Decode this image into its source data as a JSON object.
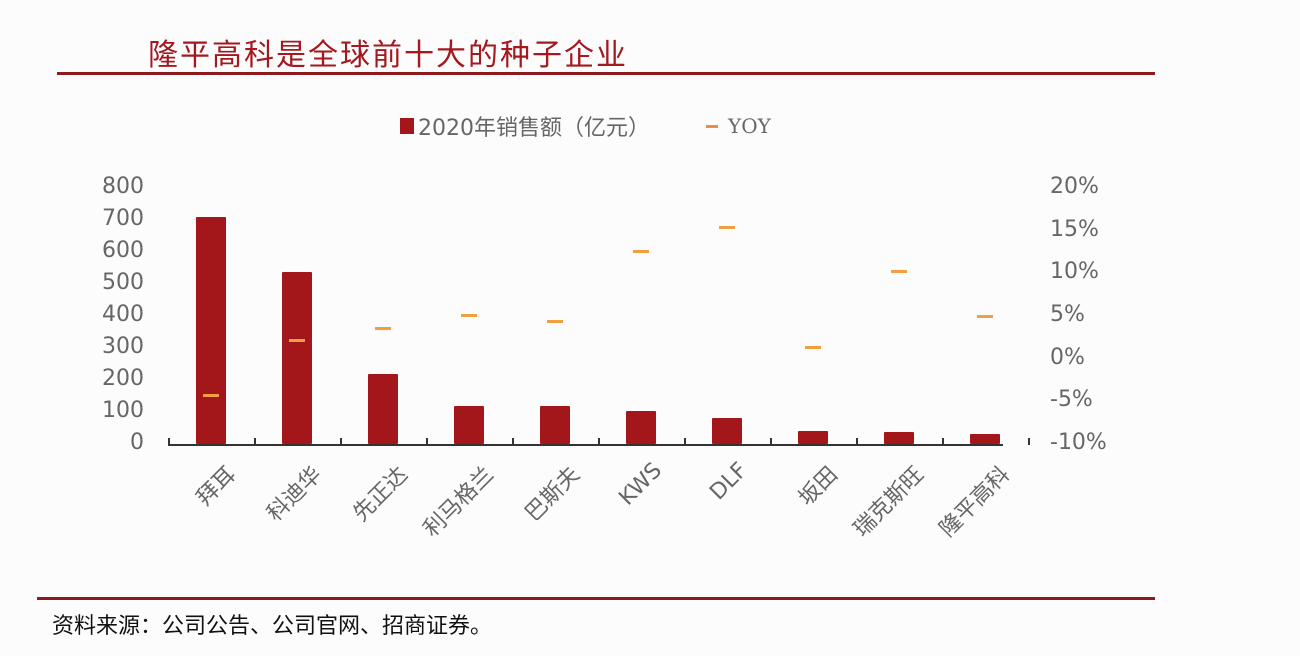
{
  "header": {
    "title": "隆平高科是全球前十大的种子企业"
  },
  "legend": {
    "bar_label": "2020年销售额（亿元）",
    "line_label": "YOY"
  },
  "footer": {
    "source": "资料来源：公司公告、公司官网、招商证券。"
  },
  "colors": {
    "bar": "#a3161a",
    "yoy": "#f0a040",
    "title": "#a3191f",
    "rule": "#8c1a1e"
  },
  "axes": {
    "left_ticks": [
      "800",
      "700",
      "600",
      "500",
      "400",
      "300",
      "200",
      "100",
      "0"
    ],
    "right_ticks": [
      "20%",
      "15%",
      "10%",
      "5%",
      "0%",
      "-5%",
      "-10%"
    ]
  },
  "chart_data": {
    "type": "bar",
    "title": "隆平高科是全球前十大的种子企业",
    "categories": [
      "拜耳",
      "科迪华",
      "先正达",
      "利马格兰",
      "巴斯夫",
      "KWS",
      "DLF",
      "坂田",
      "瑞克斯旺",
      "隆平高科"
    ],
    "series": [
      {
        "name": "2020年销售额（亿元）",
        "type": "bar",
        "axis": "left",
        "values": [
          709,
          537,
          219,
          119,
          119,
          103,
          81,
          41,
          38,
          31
        ]
      },
      {
        "name": "YOY",
        "type": "marker",
        "axis": "right",
        "unit": "%",
        "values": [
          -4.3,
          2.2,
          3.6,
          5.1,
          4.4,
          12.6,
          15.4,
          1.4,
          10.3,
          5.0
        ]
      }
    ],
    "xlabel": "",
    "ylabel": "",
    "ylim": [
      0,
      800
    ],
    "y2lim": [
      -10,
      20
    ],
    "grid": false,
    "legend_position": "top"
  }
}
